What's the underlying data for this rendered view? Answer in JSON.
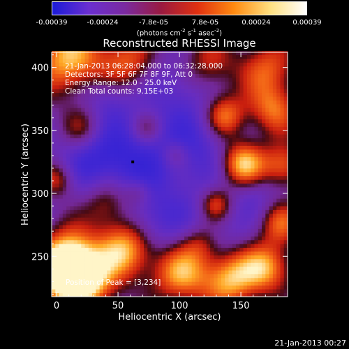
{
  "colorbar": {
    "ticks": [
      "-0.00039",
      "-0.00024",
      "-7.8e-05",
      "7.8e-05",
      "0.00024",
      "0.00039"
    ],
    "unit": {
      "prefix": "(photons cm",
      "s": "-2",
      "mid": " s",
      "e2": "-1",
      "mid2": " asec",
      "e3": "-2",
      "suffix": ")"
    },
    "colors": [
      "#1b1bd8",
      "#6a2fd0",
      "#7a2aa0",
      "#9a1a40",
      "#e03010",
      "#ff8a10",
      "#ffe080",
      "#ffffff"
    ]
  },
  "title": "Reconstructed RHESSI Image",
  "info_lines": [
    "21-Jan-2013 06:28:04.000 to 06:32:28.000",
    "Detectors: 3F 5F 6F 7F 8F 9F, Att 0",
    "Energy Range: 12.0 - 25.0 keV",
    "Clean     Total counts: 9.15E+03"
  ],
  "peak_label": "Position of Peak = [3,234]",
  "footer_stamp": "21-Jan-2013 00:27",
  "chart_data": {
    "type": "heatmap",
    "title": "Reconstructed RHESSI Image",
    "xlabel": "Heliocentric X (arcsec)",
    "ylabel": "Heliocentric Y (arcsec)",
    "xlim": [
      -4,
      188
    ],
    "ylim": [
      218,
      412
    ],
    "x_ticks": [
      0,
      50,
      100,
      150
    ],
    "y_ticks": [
      250,
      300,
      350,
      400
    ],
    "colorbar_range": [
      -0.00039,
      0.00039
    ],
    "peak": [
      3,
      234
    ],
    "marker_point": [
      62,
      325
    ],
    "blobs": [
      {
        "x": 8,
        "y": 405,
        "r": 20,
        "v": 0.8
      },
      {
        "x": 55,
        "y": 402,
        "r": 16,
        "v": 0.55
      },
      {
        "x": 120,
        "y": 400,
        "r": 16,
        "v": 0.5
      },
      {
        "x": 170,
        "y": 398,
        "r": 16,
        "v": 0.55
      },
      {
        "x": 135,
        "y": 360,
        "r": 12,
        "v": 0.75
      },
      {
        "x": 175,
        "y": 365,
        "r": 14,
        "v": 0.6
      },
      {
        "x": 150,
        "y": 322,
        "r": 13,
        "v": 0.95
      },
      {
        "x": 183,
        "y": 320,
        "r": 12,
        "v": 0.6
      },
      {
        "x": 40,
        "y": 292,
        "r": 14,
        "v": 0.55
      },
      {
        "x": 128,
        "y": 290,
        "r": 10,
        "v": 0.65
      },
      {
        "x": 115,
        "y": 260,
        "r": 12,
        "v": 0.5
      },
      {
        "x": 55,
        "y": 255,
        "r": 16,
        "v": 0.85
      },
      {
        "x": 10,
        "y": 250,
        "r": 16,
        "v": 0.7
      },
      {
        "x": 3,
        "y": 234,
        "r": 16,
        "v": 1.0
      },
      {
        "x": 25,
        "y": 228,
        "r": 16,
        "v": 0.75
      },
      {
        "x": 100,
        "y": 235,
        "r": 16,
        "v": 0.8
      },
      {
        "x": 140,
        "y": 232,
        "r": 16,
        "v": 0.85
      },
      {
        "x": 170,
        "y": 240,
        "r": 14,
        "v": 0.7
      },
      {
        "x": 72,
        "y": 350,
        "r": 9,
        "v": 0.45
      },
      {
        "x": 95,
        "y": 330,
        "r": 8,
        "v": 0.4
      },
      {
        "x": 65,
        "y": 300,
        "r": 8,
        "v": 0.35
      },
      {
        "x": 20,
        "y": 350,
        "r": 12,
        "v": 0.45
      },
      {
        "x": 0,
        "y": 310,
        "r": 10,
        "v": 0.5
      },
      {
        "x": 180,
        "y": 275,
        "r": 12,
        "v": 0.55
      },
      {
        "x": 60,
        "y": 325,
        "r": 28,
        "v": -0.6
      },
      {
        "x": 115,
        "y": 340,
        "r": 22,
        "v": -0.4
      },
      {
        "x": 25,
        "y": 325,
        "r": 18,
        "v": -0.35
      },
      {
        "x": 120,
        "y": 270,
        "r": 24,
        "v": -0.35
      },
      {
        "x": 75,
        "y": 275,
        "r": 16,
        "v": -0.3
      },
      {
        "x": 160,
        "y": 300,
        "r": 14,
        "v": -0.25
      },
      {
        "x": 100,
        "y": 385,
        "r": 18,
        "v": -0.35
      },
      {
        "x": 40,
        "y": 375,
        "r": 14,
        "v": -0.3
      }
    ]
  }
}
